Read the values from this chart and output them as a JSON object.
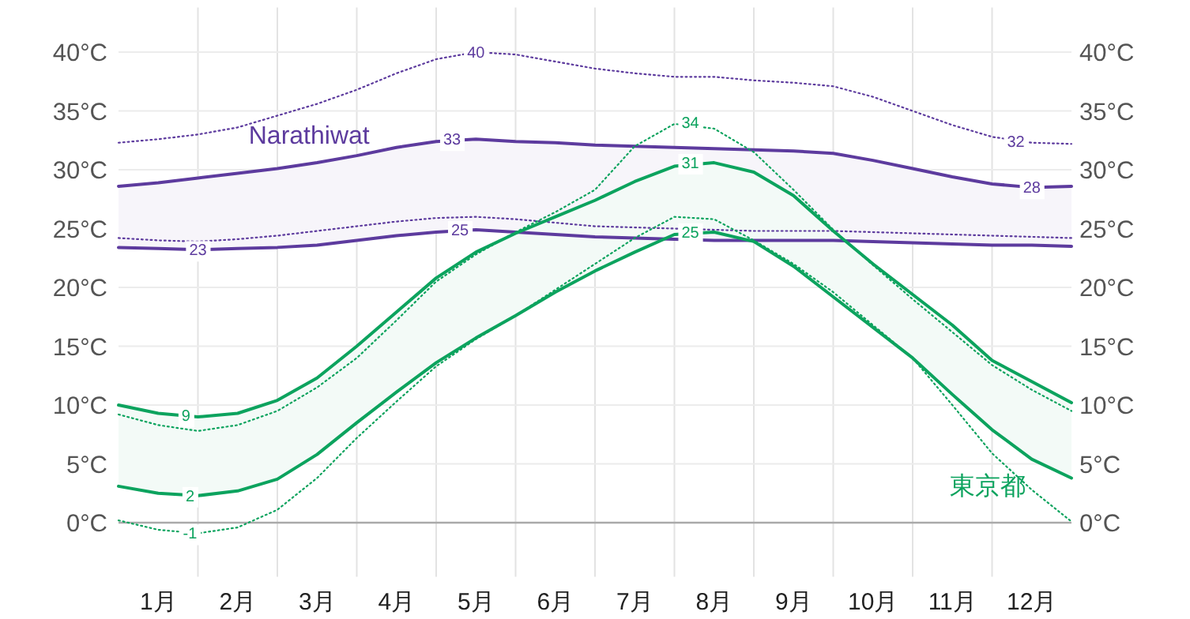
{
  "chart_data": {
    "type": "line",
    "x": [
      0,
      0.5,
      1,
      1.5,
      2,
      2.5,
      3,
      3.5,
      4,
      4.5,
      5,
      5.5,
      6,
      6.5,
      7,
      7.5,
      8,
      8.5,
      9,
      9.5,
      10,
      10.5,
      11,
      11.5,
      12
    ],
    "series": [
      {
        "color": "#5d3b9e",
        "line_style": "dotted",
        "values": [
          32.3,
          32.6,
          33.0,
          33.6,
          34.6,
          35.6,
          36.8,
          38.2,
          39.4,
          40.0,
          39.8,
          39.2,
          38.6,
          38.2,
          37.9,
          37.9,
          37.6,
          37.4,
          37.1,
          36.2,
          35.0,
          33.8,
          32.8,
          32.3,
          32.2
        ]
      },
      {
        "name": "Narathiwat",
        "color": "#5d3b9e",
        "line_style": "solid",
        "values": [
          28.6,
          28.9,
          29.3,
          29.7,
          30.1,
          30.6,
          31.2,
          31.9,
          32.4,
          32.6,
          32.4,
          32.3,
          32.1,
          32.0,
          31.9,
          31.8,
          31.7,
          31.6,
          31.4,
          30.8,
          30.1,
          29.4,
          28.8,
          28.5,
          28.6
        ],
        "lower": [
          23.4,
          23.3,
          23.2,
          23.3,
          23.4,
          23.6,
          24.0,
          24.4,
          24.7,
          24.9,
          24.7,
          24.5,
          24.3,
          24.2,
          24.1,
          24.0,
          24.0,
          24.0,
          24.0,
          23.9,
          23.8,
          23.7,
          23.6,
          23.6,
          23.5
        ],
        "upper": [
          28.6,
          28.9,
          29.3,
          29.7,
          30.1,
          30.6,
          31.2,
          31.9,
          32.4,
          32.6,
          32.4,
          32.3,
          32.1,
          32.0,
          31.9,
          31.8,
          31.7,
          31.6,
          31.4,
          30.8,
          30.1,
          29.4,
          28.8,
          28.5,
          28.6
        ]
      },
      {
        "color": "#5d3b9e",
        "line_style": "solid",
        "values": [
          23.4,
          23.3,
          23.2,
          23.3,
          23.4,
          23.6,
          24.0,
          24.4,
          24.7,
          24.9,
          24.7,
          24.5,
          24.3,
          24.2,
          24.1,
          24.0,
          24.0,
          24.0,
          24.0,
          23.9,
          23.8,
          23.7,
          23.6,
          23.6,
          23.5
        ]
      },
      {
        "color": "#5d3b9e",
        "line_style": "dotted",
        "values": [
          24.2,
          24.0,
          23.9,
          24.1,
          24.4,
          24.8,
          25.2,
          25.6,
          25.9,
          26.0,
          25.8,
          25.5,
          25.2,
          25.1,
          25.0,
          24.9,
          24.8,
          24.8,
          24.8,
          24.7,
          24.6,
          24.5,
          24.4,
          24.3,
          24.2
        ]
      },
      {
        "color": "#0ca35e",
        "line_style": "dotted",
        "values": [
          9.2,
          8.3,
          7.8,
          8.3,
          9.5,
          11.5,
          14.0,
          17.2,
          20.5,
          22.8,
          24.7,
          26.4,
          28.3,
          32.0,
          33.9,
          33.5,
          31.5,
          28.3,
          24.9,
          21.9,
          19.0,
          16.2,
          13.4,
          11.3,
          9.5
        ]
      },
      {
        "color": "#0ca35e",
        "line_style": "solid",
        "values": [
          10.0,
          9.3,
          9.0,
          9.3,
          10.4,
          12.3,
          15.0,
          17.9,
          20.8,
          23.0,
          24.6,
          26.0,
          27.4,
          29.0,
          30.3,
          30.6,
          29.8,
          27.8,
          24.8,
          22.0,
          19.4,
          16.8,
          13.8,
          12.0,
          10.2
        ],
        "lower": [
          3.1,
          2.5,
          2.3,
          2.7,
          3.7,
          5.8,
          8.5,
          11.1,
          13.6,
          15.7,
          17.6,
          19.6,
          21.4,
          23.0,
          24.5,
          24.7,
          23.9,
          21.8,
          19.2,
          16.6,
          14.0,
          10.9,
          7.9,
          5.4,
          3.8
        ],
        "upper": [
          10.0,
          9.3,
          9.0,
          9.3,
          10.4,
          12.3,
          15.0,
          17.9,
          20.8,
          23.0,
          24.6,
          26.0,
          27.4,
          29.0,
          30.3,
          30.6,
          29.8,
          27.8,
          24.8,
          22.0,
          19.4,
          16.8,
          13.8,
          12.0,
          10.2
        ]
      },
      {
        "name": "東京都",
        "color": "#0ca35e",
        "line_style": "solid",
        "values": [
          3.1,
          2.5,
          2.3,
          2.7,
          3.7,
          5.8,
          8.5,
          11.1,
          13.6,
          15.7,
          17.6,
          19.6,
          21.4,
          23.0,
          24.5,
          24.7,
          23.9,
          21.8,
          19.2,
          16.6,
          14.0,
          10.9,
          7.9,
          5.4,
          3.8
        ]
      },
      {
        "color": "#0ca35e",
        "line_style": "dotted",
        "values": [
          0.2,
          -0.6,
          -0.9,
          -0.4,
          1.1,
          3.8,
          7.2,
          10.3,
          13.3,
          15.6,
          17.6,
          19.8,
          22.0,
          24.2,
          26.0,
          25.8,
          24.0,
          22.0,
          19.6,
          16.8,
          14.0,
          10.0,
          5.9,
          2.8,
          0.1
        ]
      }
    ],
    "annotations": [
      {
        "text": "40",
        "x": 4.5,
        "y": 40.0
      },
      {
        "text": "33",
        "x": 4.2,
        "y": 32.6
      },
      {
        "text": "25",
        "x": 4.3,
        "y": 24.9
      },
      {
        "text": "23",
        "x": 1.0,
        "y": 23.2
      },
      {
        "text": "34",
        "x": 7.2,
        "y": 34.0
      },
      {
        "text": "31",
        "x": 7.2,
        "y": 30.6
      },
      {
        "text": "25",
        "x": 7.2,
        "y": 24.7
      },
      {
        "text": "9",
        "x": 0.85,
        "y": 9.1
      },
      {
        "text": "2",
        "x": 0.9,
        "y": 2.3
      },
      {
        "text": "-1",
        "x": 0.9,
        "y": -0.9
      },
      {
        "text": "28",
        "x": 11.5,
        "y": 28.5
      },
      {
        "text": "32",
        "x": 11.3,
        "y": 32.4
      }
    ],
    "xlim": [
      0,
      12
    ],
    "xticks": [
      {
        "value": 0.5,
        "label": "1月"
      },
      {
        "value": 1,
        "label": null
      },
      {
        "value": 1.5,
        "label": "2月"
      },
      {
        "value": 2,
        "label": null
      },
      {
        "value": 2.5,
        "label": "3月"
      },
      {
        "value": 3,
        "label": null
      },
      {
        "value": 3.5,
        "label": "4月"
      },
      {
        "value": 4,
        "label": null
      },
      {
        "value": 4.5,
        "label": "5月"
      },
      {
        "value": 5,
        "label": null
      },
      {
        "value": 5.5,
        "label": "6月"
      },
      {
        "value": 6,
        "label": null
      },
      {
        "value": 6.5,
        "label": "7月"
      },
      {
        "value": 7,
        "label": null
      },
      {
        "value": 7.5,
        "label": "8月"
      },
      {
        "value": 8,
        "label": null
      },
      {
        "value": 8.5,
        "label": "9月"
      },
      {
        "value": 9,
        "label": null
      },
      {
        "value": 9.5,
        "label": "10月"
      },
      {
        "value": 10,
        "label": null
      },
      {
        "value": 10.5,
        "label": "11月"
      },
      {
        "value": 11,
        "label": null
      },
      {
        "value": 11.5,
        "label": "12月"
      }
    ],
    "ylim": [
      -4.6,
      43.8
    ],
    "yticks": [
      {
        "value": 0,
        "label": "0°C"
      },
      {
        "value": 5,
        "label": "5°C"
      },
      {
        "value": 10,
        "label": "10°C"
      },
      {
        "value": 15,
        "label": "15°C"
      },
      {
        "value": 20,
        "label": "20°C"
      },
      {
        "value": 25,
        "label": "25°C"
      },
      {
        "value": 30,
        "label": "30°C"
      },
      {
        "value": 35,
        "label": "35°C"
      },
      {
        "value": 40,
        "label": "40°C"
      }
    ],
    "y2lim": [
      -4.6,
      43.8
    ],
    "y2ticks": [
      {
        "value": 0,
        "label": "0°C"
      },
      {
        "value": 5,
        "label": "5°C"
      },
      {
        "value": 10,
        "label": "10°C"
      },
      {
        "value": 15,
        "label": "15°C"
      },
      {
        "value": 20,
        "label": "20°C"
      },
      {
        "value": 25,
        "label": "25°C"
      },
      {
        "value": 30,
        "label": "30°C"
      },
      {
        "value": 35,
        "label": "35°C"
      },
      {
        "value": 40,
        "label": "40°C"
      }
    ],
    "ref_lines": [
      {
        "axis": "y",
        "value": 0,
        "color": "#aaaaaa"
      }
    ],
    "grid": true,
    "marker": "none"
  }
}
